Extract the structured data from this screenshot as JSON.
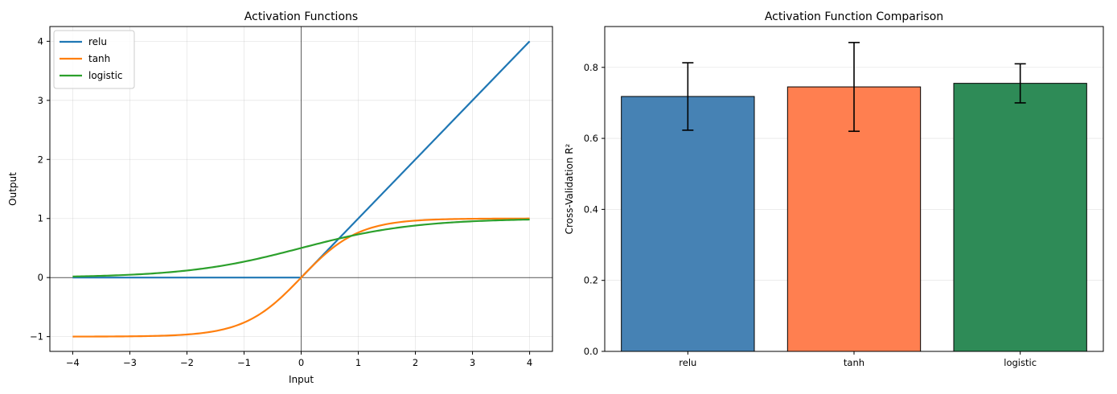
{
  "chart_data": [
    {
      "type": "line",
      "title": "Activation Functions",
      "xlabel": "Input",
      "ylabel": "Output",
      "xlim": [
        -4.4,
        4.4
      ],
      "ylim": [
        -1.25,
        4.25
      ],
      "xticks": [
        -4,
        -3,
        -2,
        -1,
        0,
        1,
        2,
        3,
        4
      ],
      "yticks": [
        -1,
        0,
        1,
        2,
        3,
        4
      ],
      "grid": true,
      "legend_position": "top-left",
      "reference_lines": {
        "x": 0,
        "y": 0
      },
      "x_range": [
        -4,
        4
      ],
      "series": [
        {
          "name": "relu",
          "function": "relu",
          "color": "#1f77b4"
        },
        {
          "name": "tanh",
          "function": "tanh",
          "color": "#ff7f0e"
        },
        {
          "name": "logistic",
          "function": "logistic",
          "color": "#2ca02c"
        }
      ]
    },
    {
      "type": "bar",
      "title": "Activation Function Comparison",
      "xlabel": "",
      "ylabel": "Cross-Validation R²",
      "categories": [
        "relu",
        "tanh",
        "logistic"
      ],
      "values": [
        0.718,
        0.745,
        0.755
      ],
      "errors": [
        0.095,
        0.125,
        0.055
      ],
      "colors": [
        "#4682b4",
        "#ff7f50",
        "#2e8b57"
      ],
      "ylim": [
        0,
        0.915
      ],
      "yticks": [
        0.0,
        0.2,
        0.4,
        0.6,
        0.8
      ],
      "grid": true
    }
  ]
}
